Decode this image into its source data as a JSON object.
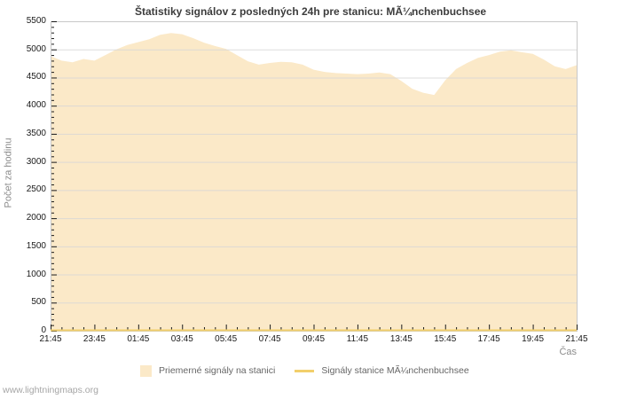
{
  "page": {
    "footer": "www.lightningmaps.org"
  },
  "colors": {
    "frame": "#c8c8c8",
    "grid": "#d7d7d7",
    "tick": "#1a1a1a",
    "area_fill": "#fbe9c8",
    "station_line": "#f2cf6b"
  },
  "chart_data": {
    "type": "area",
    "title": "Štatistiky signálov z posledných 24h pre stanicu: MÃ¼nchenbuchsee",
    "xlabel": "Čas",
    "ylabel": "Počet za hodinu",
    "ylim": [
      0,
      5500
    ],
    "ytick_step": 500,
    "ytick_minor_step": 100,
    "grid": true,
    "legend_position": "bottom",
    "x_tick_labels": [
      "21:45",
      "23:45",
      "01:45",
      "03:45",
      "05:45",
      "07:45",
      "09:45",
      "11:45",
      "13:45",
      "15:45",
      "17:45",
      "19:45",
      "21:45"
    ],
    "x_interval_minutes": 30,
    "x_minor_ticks_per_major": 4,
    "series": [
      {
        "name": "Priemerné signály na stanici",
        "type": "area",
        "color": "#fbe9c8",
        "values": [
          4880,
          4800,
          4770,
          4830,
          4800,
          4900,
          5000,
          5080,
          5130,
          5180,
          5260,
          5290,
          5270,
          5200,
          5120,
          5060,
          5010,
          4900,
          4790,
          4730,
          4760,
          4780,
          4770,
          4730,
          4640,
          4600,
          4580,
          4570,
          4560,
          4570,
          4590,
          4560,
          4440,
          4300,
          4230,
          4190,
          4450,
          4650,
          4760,
          4850,
          4900,
          4960,
          4985,
          4950,
          4920,
          4820,
          4700,
          4650,
          4720
        ]
      },
      {
        "name": "Signály stanice MÃ¼nchenbuchsee",
        "type": "line",
        "color": "#f2cf6b",
        "values": [
          0,
          0,
          0,
          0,
          0,
          0,
          0,
          0,
          0,
          0,
          0,
          0,
          0,
          0,
          0,
          0,
          0,
          0,
          0,
          0,
          0,
          0,
          0,
          0,
          0,
          0,
          0,
          0,
          0,
          0,
          0,
          0,
          0,
          0,
          0,
          0,
          0,
          0,
          0,
          0,
          0,
          0,
          0,
          0,
          0,
          0,
          0,
          0,
          0
        ]
      }
    ]
  }
}
